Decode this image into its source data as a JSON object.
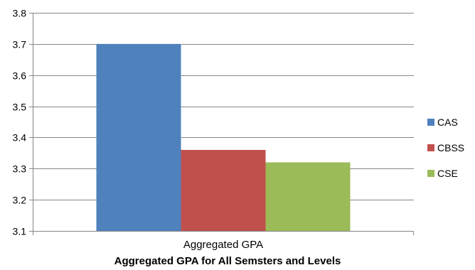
{
  "chart_data": {
    "type": "bar",
    "title": "Aggregated GPA for All Semsters and Levels",
    "categories": [
      "Aggregated GPA"
    ],
    "series": [
      {
        "name": "CAS",
        "values": [
          3.7
        ],
        "color": "#4f81bd"
      },
      {
        "name": "CBSS",
        "values": [
          3.36
        ],
        "color": "#c0504d"
      },
      {
        "name": "CSE",
        "values": [
          3.32
        ],
        "color": "#9bbb59"
      }
    ],
    "ylim": [
      3.1,
      3.8
    ],
    "yticks": [
      "3.1",
      "3.2",
      "3.3",
      "3.4",
      "3.5",
      "3.6",
      "3.7",
      "3.8"
    ],
    "grid": true,
    "legend_position": "right"
  }
}
